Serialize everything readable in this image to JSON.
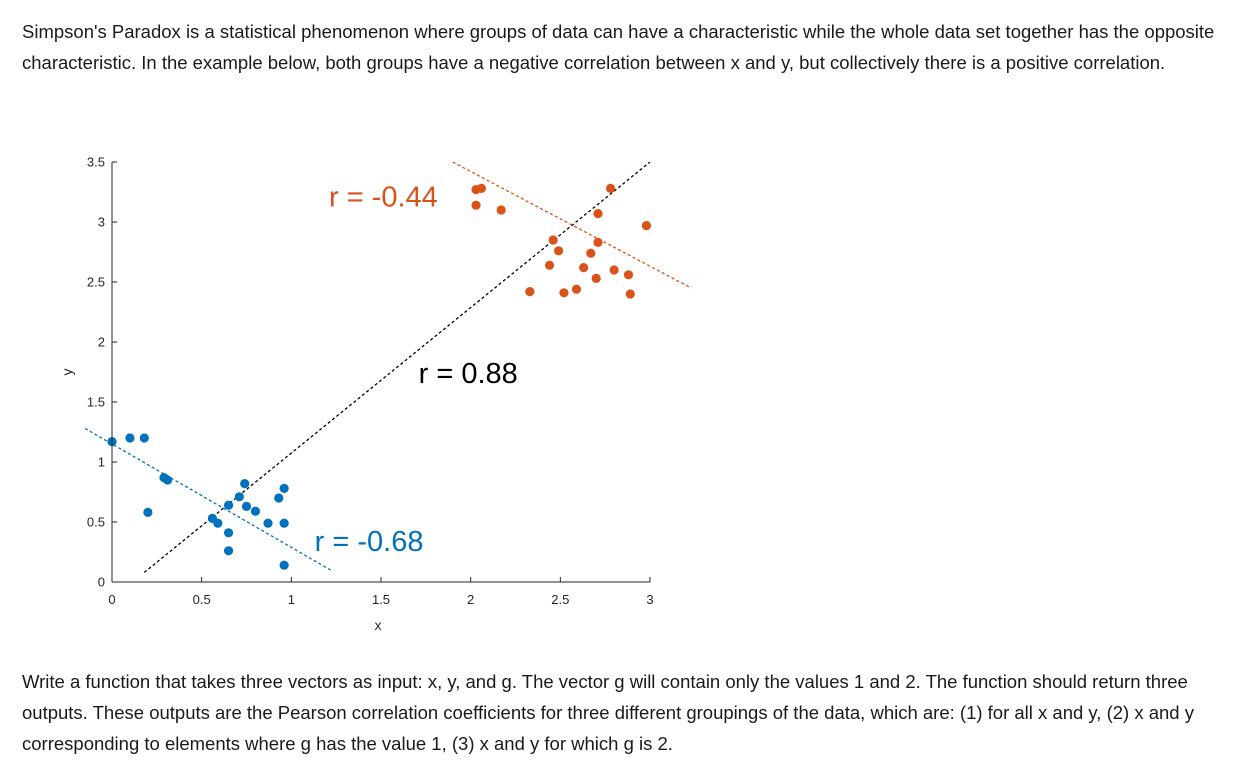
{
  "text": {
    "intro": "Simpson's Paradox is a statistical phenomenon where groups of data can have a characteristic while the whole data set together has the opposite characteristic. In the example below, both groups have a negative correlation between x and y, but collectively there is a positive correlation.",
    "outro": "Write a function that takes three vectors as input: x, y, and g. The vector g will contain only the values 1 and 2. The function should return three outputs. These outputs are the Pearson correlation coefficients for three different groupings of the data, which are: (1) for all x and y, (2) x and y corresponding to elements where g has the value 1, (3) x and y for which g is 2."
  },
  "chart_data": {
    "type": "scatter",
    "xlabel": "x",
    "ylabel": "y",
    "xlim": [
      0,
      3
    ],
    "ylim": [
      0,
      3.5
    ],
    "xticks": [
      "0",
      "0.5",
      "1",
      "1.5",
      "2",
      "2.5",
      "3"
    ],
    "yticks": [
      "0",
      "0.5",
      "1",
      "1.5",
      "2",
      "2.5",
      "3",
      "3.5"
    ],
    "grid": false,
    "colors": {
      "group1": "#0072BD",
      "group2": "#D95319",
      "all": "#000000"
    },
    "series": [
      {
        "group": 1,
        "color": "#0072BD",
        "points": [
          [
            0.0,
            1.17
          ],
          [
            0.1,
            1.2
          ],
          [
            0.18,
            1.2
          ],
          [
            0.2,
            0.58
          ],
          [
            0.29,
            0.87
          ],
          [
            0.31,
            0.85
          ],
          [
            0.56,
            0.53
          ],
          [
            0.59,
            0.49
          ],
          [
            0.65,
            0.64
          ],
          [
            0.65,
            0.41
          ],
          [
            0.65,
            0.26
          ],
          [
            0.71,
            0.71
          ],
          [
            0.74,
            0.82
          ],
          [
            0.75,
            0.63
          ],
          [
            0.8,
            0.59
          ],
          [
            0.87,
            0.49
          ],
          [
            0.93,
            0.7
          ],
          [
            0.96,
            0.78
          ],
          [
            0.96,
            0.49
          ],
          [
            0.96,
            0.14
          ]
        ]
      },
      {
        "group": 2,
        "color": "#D95319",
        "points": [
          [
            2.03,
            3.27
          ],
          [
            2.06,
            3.28
          ],
          [
            2.03,
            3.14
          ],
          [
            2.17,
            3.1
          ],
          [
            2.33,
            2.42
          ],
          [
            2.44,
            2.64
          ],
          [
            2.46,
            2.85
          ],
          [
            2.49,
            2.76
          ],
          [
            2.52,
            2.41
          ],
          [
            2.59,
            2.44
          ],
          [
            2.63,
            2.62
          ],
          [
            2.67,
            2.74
          ],
          [
            2.7,
            2.53
          ],
          [
            2.71,
            2.83
          ],
          [
            2.71,
            3.07
          ],
          [
            2.78,
            3.28
          ],
          [
            2.8,
            2.6
          ],
          [
            2.88,
            2.56
          ],
          [
            2.89,
            2.4
          ],
          [
            2.98,
            2.97
          ]
        ]
      }
    ],
    "fit_lines": [
      {
        "group": "all",
        "color": "#000000",
        "x": [
          0.18,
          3.0
        ],
        "y": [
          0.08,
          3.5
        ]
      },
      {
        "group": 1,
        "color": "#0072BD",
        "x": [
          -0.15,
          1.23
        ],
        "y": [
          1.28,
          0.09
        ]
      },
      {
        "group": 2,
        "color": "#D95319",
        "x": [
          1.9,
          3.23
        ],
        "y": [
          3.5,
          2.45
        ]
      }
    ],
    "annotations": [
      {
        "text": "r = -0.44",
        "color": "#D95319"
      },
      {
        "text": "r = 0.88",
        "color": "#000000"
      },
      {
        "text": "r = -0.68",
        "color": "#0072BD"
      }
    ]
  }
}
